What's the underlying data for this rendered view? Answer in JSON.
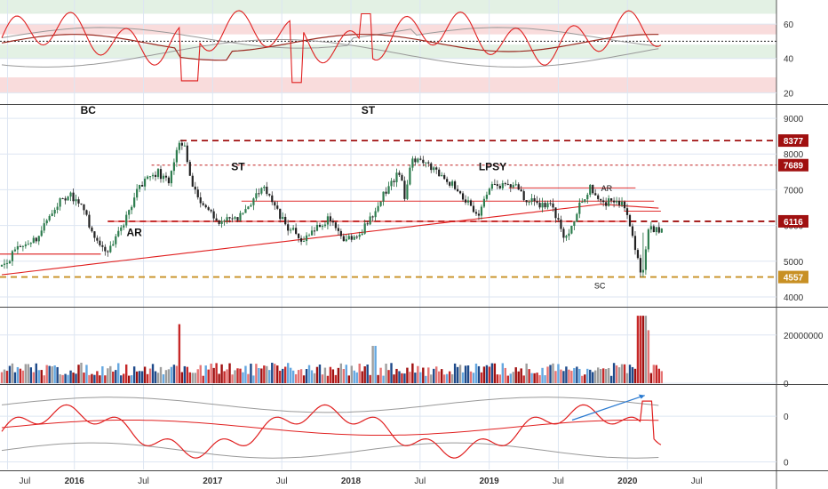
{
  "chart_data": {
    "type": "line",
    "x_labels": [
      "Jul",
      "2016",
      "Jul",
      "2017",
      "Jul",
      "2018",
      "Jul",
      "2019",
      "Jul",
      "2020",
      "Jul"
    ],
    "panels": [
      {
        "name": "oscillator-top",
        "yticks": [
          "20",
          "40",
          "60"
        ],
        "ylim": [
          14,
          74
        ],
        "midline": 50,
        "zones": [
          {
            "from": 66,
            "to": 74,
            "color": "#e3f1e4"
          },
          {
            "from": 54,
            "to": 60,
            "color": "#f9dcdc"
          },
          {
            "from": 40,
            "to": 48,
            "color": "#e3f1e4"
          },
          {
            "from": 20,
            "to": 29,
            "color": "#f9dcdc"
          }
        ]
      },
      {
        "name": "price",
        "yticks": [
          "4000",
          "5000",
          "6000",
          "7000",
          "8000",
          "9000"
        ],
        "ylim": [
          3750,
          9350
        ],
        "price_tags": [
          {
            "value": 8377,
            "label": "8377",
            "color": "#a01010"
          },
          {
            "value": 7689,
            "label": "7689",
            "color": "#a01010"
          },
          {
            "value": 6116,
            "label": "6116",
            "color": "#a01010"
          },
          {
            "value": 4557,
            "label": "4557",
            "color": "#c89024"
          }
        ],
        "annotations": [
          {
            "text": "BC",
            "month": 7.5,
            "value": 9120,
            "bold": true
          },
          {
            "text": "AR",
            "month": 11.5,
            "value": 5700,
            "bold": true
          },
          {
            "text": "ST",
            "month": 20.5,
            "value": 7540,
            "bold": true
          },
          {
            "text": "ST",
            "month": 31.8,
            "value": 9120,
            "bold": true
          },
          {
            "text": "LPSY",
            "month": 42.6,
            "value": 7540,
            "bold": true
          },
          {
            "text": "AR",
            "month": 52.5,
            "value": 6960,
            "bold": false
          },
          {
            "text": "SC",
            "month": 51.9,
            "value": 4240,
            "bold": false
          }
        ]
      },
      {
        "name": "volume",
        "yticks": [
          "0",
          "20000000"
        ],
        "ylim": [
          0,
          31000000
        ]
      },
      {
        "name": "oscillator-bottom",
        "yticks": [
          "0",
          "0"
        ],
        "ylim": [
          -14,
          8
        ]
      }
    ]
  }
}
